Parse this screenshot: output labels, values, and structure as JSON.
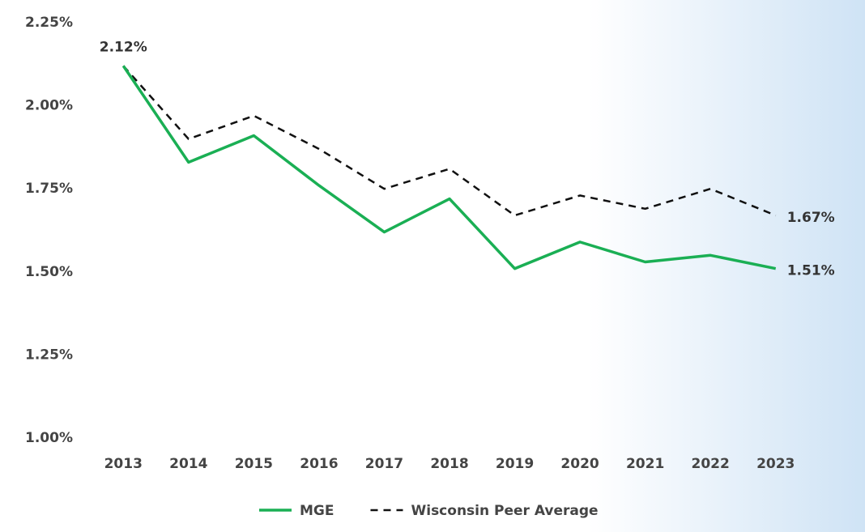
{
  "chart_data": {
    "type": "line",
    "categories": [
      "2013",
      "2014",
      "2015",
      "2016",
      "2017",
      "2018",
      "2019",
      "2020",
      "2021",
      "2022",
      "2023"
    ],
    "series": [
      {
        "name": "MGE",
        "color": "#1aaf54",
        "dash": false,
        "values": [
          2.12,
          1.83,
          1.91,
          1.76,
          1.62,
          1.72,
          1.51,
          1.59,
          1.53,
          1.55,
          1.51
        ],
        "value_labels": [
          "2.12%",
          null,
          null,
          null,
          null,
          null,
          null,
          null,
          null,
          null,
          "1.51%"
        ]
      },
      {
        "name": "Wisconsin Peer Average",
        "color": "#111111",
        "dash": true,
        "values": [
          2.12,
          1.9,
          1.97,
          1.87,
          1.75,
          1.81,
          1.67,
          1.73,
          1.69,
          1.75,
          1.67
        ],
        "value_labels": [
          null,
          null,
          null,
          null,
          null,
          null,
          null,
          null,
          null,
          null,
          "1.67%"
        ]
      }
    ],
    "ylim": [
      1.0,
      2.25
    ],
    "yticks": [
      {
        "value": 1.0,
        "label": "1.00%"
      },
      {
        "value": 1.25,
        "label": "1.25%"
      },
      {
        "value": 1.5,
        "label": "1.50%"
      },
      {
        "value": 1.75,
        "label": "1.75%"
      },
      {
        "value": 2.0,
        "label": "2.00%"
      },
      {
        "value": 2.25,
        "label": "2.25%"
      }
    ],
    "grid": false,
    "legend": "bottom"
  }
}
